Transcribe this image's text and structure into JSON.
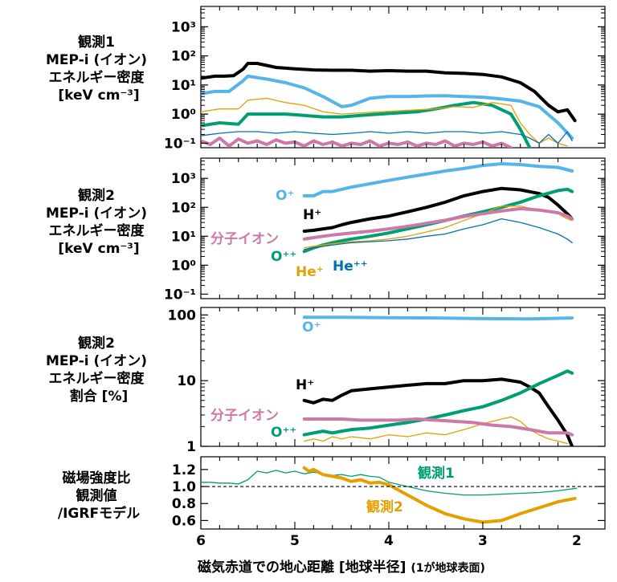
{
  "x_axis": {
    "label": "磁気赤道での地心距離 [地球半径]",
    "label_note": "(1が地球表面)",
    "ticks": [
      "6",
      "5",
      "4",
      "3",
      "2"
    ],
    "range": [
      6.0,
      1.7
    ],
    "reversed": true
  },
  "colors": {
    "H+": "#000000",
    "O+": "#56b4e9",
    "O++": "#009e73",
    "He+": "#e69f00",
    "He++": "#0072b2",
    "molecular": "#cc79a7",
    "obs1_field": "#009e73",
    "obs2_field": "#e69f00"
  },
  "panels": [
    {
      "label_lines": [
        "観測1",
        "MEP-i (イオン)",
        "エネルギー密度",
        "[keV cm⁻³]"
      ]
    },
    {
      "label_lines": [
        "観測2",
        "MEP-i (イオン)",
        "エネルギー密度",
        "[keV cm⁻³]"
      ],
      "annotations": [
        "O⁺",
        "H⁺",
        "分子イオン",
        "O⁺⁺",
        "He⁺",
        "He⁺⁺"
      ]
    },
    {
      "label_lines": [
        "観測2",
        "MEP-i (イオン)",
        "エネルギー密度",
        "割合 [%]"
      ],
      "annotations": [
        "O⁺",
        "H⁺",
        "分子イオン",
        "O⁺⁺"
      ]
    },
    {
      "label_lines": [
        "磁場強度比",
        "観測値",
        "/IGRFモデル"
      ],
      "annotations": [
        "観測1",
        "観測2"
      ]
    }
  ],
  "chart_data": [
    {
      "type": "line",
      "title": "",
      "xlabel": "磁気赤道での地心距離 [地球半径]",
      "ylabel": "観測1 MEP-i (イオン) エネルギー密度 [keV cm⁻³]",
      "yscale": "log",
      "ylim": [
        0.07,
        5000
      ],
      "xlim": [
        6.0,
        1.7
      ],
      "yticks": [
        "10⁻¹",
        "10⁰",
        "10¹",
        "10²",
        "10³"
      ],
      "series": [
        {
          "key": "H+",
          "x": [
            6.0,
            5.85,
            5.75,
            5.65,
            5.55,
            5.5,
            5.4,
            5.2,
            5.0,
            4.8,
            4.6,
            4.4,
            4.2,
            4.0,
            3.8,
            3.6,
            3.4,
            3.2,
            3.0,
            2.8,
            2.6,
            2.45,
            2.3,
            2.2,
            2.1,
            2.02
          ],
          "y": [
            17,
            20,
            20,
            21,
            35,
            55,
            55,
            40,
            36,
            33,
            32,
            32,
            30,
            31,
            30,
            30,
            26,
            25,
            23,
            19,
            12,
            6,
            2.0,
            1.2,
            1.4,
            0.6
          ]
        },
        {
          "key": "O+",
          "x": [
            6.0,
            5.85,
            5.7,
            5.55,
            5.5,
            5.3,
            5.1,
            4.9,
            4.7,
            4.5,
            4.4,
            4.2,
            4.0,
            3.8,
            3.6,
            3.4,
            3.2,
            3.0,
            2.8,
            2.6,
            2.4,
            2.2,
            2.05
          ],
          "y": [
            5,
            6,
            6,
            14,
            20,
            16,
            12,
            8,
            4,
            1.8,
            2.0,
            3.5,
            4.0,
            4.0,
            4.2,
            4.3,
            4.0,
            3.8,
            3.3,
            2.8,
            1.8,
            0.5,
            0.15
          ]
        },
        {
          "key": "O++",
          "x": [
            6.0,
            5.8,
            5.6,
            5.5,
            5.3,
            5.1,
            4.9,
            4.7,
            4.5,
            4.3,
            4.1,
            3.9,
            3.7,
            3.5,
            3.3,
            3.1,
            2.9,
            2.7,
            2.6,
            2.5
          ],
          "y": [
            0.4,
            0.5,
            0.45,
            1.0,
            1.0,
            1.0,
            0.9,
            0.8,
            0.8,
            0.9,
            1.0,
            1.1,
            1.2,
            1.5,
            2.0,
            2.5,
            2.0,
            1.0,
            0.3,
            0.07
          ]
        },
        {
          "key": "He+",
          "x": [
            6.0,
            5.8,
            5.6,
            5.5,
            5.3,
            5.1,
            4.9,
            4.7,
            4.5,
            4.3,
            4.1,
            3.9,
            3.7,
            3.5,
            3.3,
            3.1,
            2.9,
            2.7,
            2.6,
            2.5,
            2.4,
            2.3,
            2.2,
            2.1
          ],
          "y": [
            1.2,
            1.5,
            1.5,
            3.0,
            3.5,
            2.5,
            2.0,
            1.2,
            1.0,
            1.1,
            1.2,
            1.3,
            1.4,
            1.5,
            1.8,
            1.7,
            2.5,
            2.0,
            0.5,
            0.2,
            0.1,
            0.15,
            0.1,
            0.08
          ]
        },
        {
          "key": "He++",
          "x": [
            6.0,
            5.8,
            5.6,
            5.4,
            5.2,
            5.0,
            4.8,
            4.6,
            4.4,
            4.2,
            4.0,
            3.8,
            3.6,
            3.4,
            3.2,
            3.0,
            2.8,
            2.6,
            2.5,
            2.4,
            2.3,
            2.2,
            2.1,
            2.05
          ],
          "y": [
            0.18,
            0.22,
            0.25,
            0.25,
            0.22,
            0.25,
            0.22,
            0.2,
            0.22,
            0.25,
            0.22,
            0.25,
            0.22,
            0.25,
            0.25,
            0.22,
            0.25,
            0.2,
            0.15,
            0.1,
            0.2,
            0.1,
            0.25,
            0.12
          ]
        },
        {
          "key": "molecular",
          "x": [
            6.0,
            5.9,
            5.8,
            5.7,
            5.6,
            5.5,
            5.4,
            5.3,
            5.2,
            5.1,
            5.0,
            4.9,
            4.8,
            4.7,
            4.6,
            4.5,
            4.4,
            4.3,
            4.2,
            4.1,
            4.0,
            3.9,
            3.8,
            3.7,
            3.6,
            3.5,
            3.4,
            3.3,
            3.2,
            3.1,
            3.0,
            2.9,
            2.8,
            2.7
          ],
          "y": [
            0.12,
            0.09,
            0.15,
            0.08,
            0.14,
            0.1,
            0.12,
            0.09,
            0.13,
            0.1,
            0.11,
            0.08,
            0.12,
            0.09,
            0.11,
            0.08,
            0.1,
            0.09,
            0.12,
            0.08,
            0.1,
            0.09,
            0.11,
            0.08,
            0.1,
            0.09,
            0.12,
            0.08,
            0.1,
            0.09,
            0.11,
            0.08,
            0.1,
            0.07
          ]
        }
      ]
    },
    {
      "type": "line",
      "title": "",
      "xlabel": "磁気赤道での地心距離 [地球半径]",
      "ylabel": "観測2 MEP-i (イオン) エネルギー密度 [keV cm⁻³]",
      "yscale": "log",
      "ylim": [
        0.07,
        5000
      ],
      "xlim": [
        6.0,
        1.7
      ],
      "yticks": [
        "10⁻¹",
        "10⁰",
        "10¹",
        "10²",
        "10³",
        ""
      ],
      "series": [
        {
          "key": "O+",
          "x": [
            4.9,
            4.8,
            4.7,
            4.6,
            4.5,
            4.4,
            4.2,
            4.0,
            3.8,
            3.6,
            3.4,
            3.2,
            3.0,
            2.8,
            2.6,
            2.4,
            2.2,
            2.05
          ],
          "y": [
            250,
            250,
            350,
            350,
            420,
            500,
            650,
            850,
            1100,
            1400,
            1800,
            2200,
            2800,
            3200,
            3000,
            2600,
            2400,
            1800
          ]
        },
        {
          "key": "H+",
          "x": [
            4.9,
            4.8,
            4.7,
            4.6,
            4.5,
            4.4,
            4.2,
            4.0,
            3.8,
            3.6,
            3.4,
            3.2,
            3.0,
            2.8,
            2.6,
            2.4,
            2.3,
            2.2,
            2.1,
            2.05
          ],
          "y": [
            15,
            16,
            18,
            20,
            25,
            30,
            40,
            50,
            70,
            100,
            150,
            250,
            350,
            450,
            400,
            300,
            220,
            120,
            60,
            40
          ]
        },
        {
          "key": "O++",
          "x": [
            4.9,
            4.8,
            4.7,
            4.6,
            4.5,
            4.4,
            4.2,
            4.0,
            3.8,
            3.6,
            3.4,
            3.2,
            3.0,
            2.8,
            2.6,
            2.4,
            2.2,
            2.1,
            2.05
          ],
          "y": [
            3.0,
            4,
            5,
            6,
            7,
            8,
            10,
            13,
            18,
            25,
            35,
            50,
            70,
            100,
            150,
            250,
            380,
            420,
            350
          ]
        },
        {
          "key": "He+",
          "x": [
            4.9,
            4.8,
            4.7,
            4.6,
            4.5,
            4.4,
            4.2,
            4.0,
            3.8,
            3.6,
            3.4,
            3.2,
            3.0,
            2.8,
            2.6,
            2.4,
            2.2,
            2.1,
            2.05
          ],
          "y": [
            4,
            4.5,
            5,
            5.5,
            6,
            6.5,
            7,
            8,
            10,
            14,
            20,
            35,
            60,
            110,
            110,
            80,
            60,
            40,
            35
          ]
        },
        {
          "key": "He++",
          "x": [
            4.9,
            4.8,
            4.7,
            4.6,
            4.5,
            4.4,
            4.2,
            4.0,
            3.8,
            3.6,
            3.4,
            3.2,
            3.0,
            2.8,
            2.6,
            2.4,
            2.2,
            2.1,
            2.05
          ],
          "y": [
            3.5,
            4,
            4.5,
            5,
            5.5,
            6,
            6.5,
            7,
            8,
            10,
            12,
            18,
            25,
            40,
            30,
            20,
            12,
            8,
            6
          ]
        },
        {
          "key": "molecular",
          "x": [
            4.9,
            4.8,
            4.7,
            4.6,
            4.5,
            4.4,
            4.2,
            4.0,
            3.8,
            3.6,
            3.4,
            3.2,
            3.0,
            2.8,
            2.6,
            2.4,
            2.2,
            2.1,
            2.05
          ],
          "y": [
            8,
            9,
            10,
            11,
            12,
            13,
            15,
            18,
            22,
            28,
            36,
            48,
            60,
            75,
            90,
            80,
            65,
            50,
            40
          ]
        }
      ]
    },
    {
      "type": "line",
      "title": "",
      "xlabel": "磁気赤道での地心距離 [地球半径]",
      "ylabel": "観測2 MEP-i (イオン) エネルギー密度 割合 [%]",
      "yscale": "log",
      "ylim": [
        1,
        130
      ],
      "xlim": [
        6.0,
        1.7
      ],
      "yticks": [
        "1",
        "10",
        "100"
      ],
      "series": [
        {
          "key": "O+",
          "x": [
            4.9,
            4.5,
            4.0,
            3.5,
            3.0,
            2.5,
            2.05
          ],
          "y": [
            92,
            92,
            91,
            90,
            88,
            87,
            90
          ]
        },
        {
          "key": "H+",
          "x": [
            4.9,
            4.8,
            4.7,
            4.6,
            4.5,
            4.4,
            4.2,
            4.0,
            3.8,
            3.6,
            3.4,
            3.2,
            3.0,
            2.8,
            2.6,
            2.5,
            2.4,
            2.3,
            2.2,
            2.1,
            2.05
          ],
          "y": [
            5.0,
            4.6,
            5.2,
            5.0,
            6.0,
            7.0,
            7.5,
            8.0,
            8.5,
            9.0,
            9.0,
            10.0,
            10.0,
            10.5,
            9.5,
            8.0,
            6.5,
            4.0,
            2.5,
            1.5,
            1.0
          ]
        },
        {
          "key": "O++",
          "x": [
            4.9,
            4.8,
            4.7,
            4.6,
            4.5,
            4.4,
            4.2,
            4.0,
            3.8,
            3.6,
            3.4,
            3.2,
            3.0,
            2.8,
            2.6,
            2.4,
            2.2,
            2.1,
            2.05
          ],
          "y": [
            1.5,
            1.6,
            1.7,
            1.6,
            1.7,
            1.8,
            1.9,
            2.1,
            2.3,
            2.6,
            3.0,
            3.5,
            4.0,
            5.0,
            6.5,
            9.0,
            12.0,
            14.0,
            13.0
          ]
        },
        {
          "key": "He+",
          "x": [
            4.9,
            4.8,
            4.7,
            4.6,
            4.5,
            4.4,
            4.2,
            4.0,
            3.8,
            3.6,
            3.4,
            3.2,
            3.0,
            2.8,
            2.7,
            2.6,
            2.5,
            2.4,
            2.3,
            2.2,
            2.1
          ],
          "y": [
            1.2,
            1.3,
            1.2,
            1.4,
            1.3,
            1.4,
            1.3,
            1.5,
            1.4,
            1.6,
            1.5,
            1.8,
            2.2,
            2.6,
            2.8,
            2.4,
            1.8,
            1.5,
            1.3,
            1.2,
            1.1
          ]
        },
        {
          "key": "molecular",
          "x": [
            4.9,
            4.7,
            4.5,
            4.3,
            4.1,
            3.9,
            3.7,
            3.5,
            3.3,
            3.1,
            2.9,
            2.7,
            2.5,
            2.3,
            2.1,
            2.05
          ],
          "y": [
            2.6,
            2.6,
            2.6,
            2.5,
            2.5,
            2.5,
            2.6,
            2.5,
            2.4,
            2.3,
            2.1,
            2.0,
            1.8,
            1.6,
            1.6,
            1.5
          ]
        }
      ]
    },
    {
      "type": "line",
      "title": "",
      "xlabel": "磁気赤道での地心距離 [地球半径]",
      "ylabel": "磁場強度比 観測値 /IGRFモデル",
      "yscale": "linear",
      "ylim": [
        0.5,
        1.35
      ],
      "xlim": [
        6.0,
        1.7
      ],
      "yticks": [
        "0.6",
        "0.8",
        "1.0",
        "1.2"
      ],
      "reference_line": 1.0,
      "series": [
        {
          "key": "obs1_field",
          "name": "観測1",
          "x": [
            6.0,
            5.9,
            5.8,
            5.7,
            5.6,
            5.5,
            5.4,
            5.3,
            5.2,
            5.1,
            5.0,
            4.9,
            4.8,
            4.7,
            4.6,
            4.5,
            4.4,
            4.3,
            4.2,
            4.1,
            4.0,
            3.8,
            3.6,
            3.4,
            3.2,
            3.0,
            2.8,
            2.6,
            2.4,
            2.2,
            2.0
          ],
          "y": [
            1.05,
            1.05,
            1.04,
            1.04,
            1.03,
            1.08,
            1.18,
            1.16,
            1.19,
            1.16,
            1.18,
            1.15,
            1.17,
            1.15,
            1.13,
            1.14,
            1.12,
            1.14,
            1.12,
            1.11,
            1.05,
            1.0,
            0.95,
            0.92,
            0.9,
            0.9,
            0.91,
            0.92,
            0.93,
            0.95,
            0.98
          ]
        },
        {
          "key": "obs2_field",
          "name": "観測2",
          "x": [
            4.9,
            4.85,
            4.8,
            4.7,
            4.6,
            4.5,
            4.4,
            4.3,
            4.2,
            4.1,
            4.0,
            3.8,
            3.6,
            3.4,
            3.2,
            3.0,
            2.8,
            2.6,
            2.4,
            2.2,
            2.02
          ],
          "y": [
            1.22,
            1.18,
            1.2,
            1.14,
            1.12,
            1.1,
            1.06,
            1.08,
            1.04,
            1.05,
            1.02,
            0.9,
            0.78,
            0.68,
            0.62,
            0.58,
            0.6,
            0.68,
            0.75,
            0.82,
            0.86
          ]
        }
      ]
    }
  ]
}
